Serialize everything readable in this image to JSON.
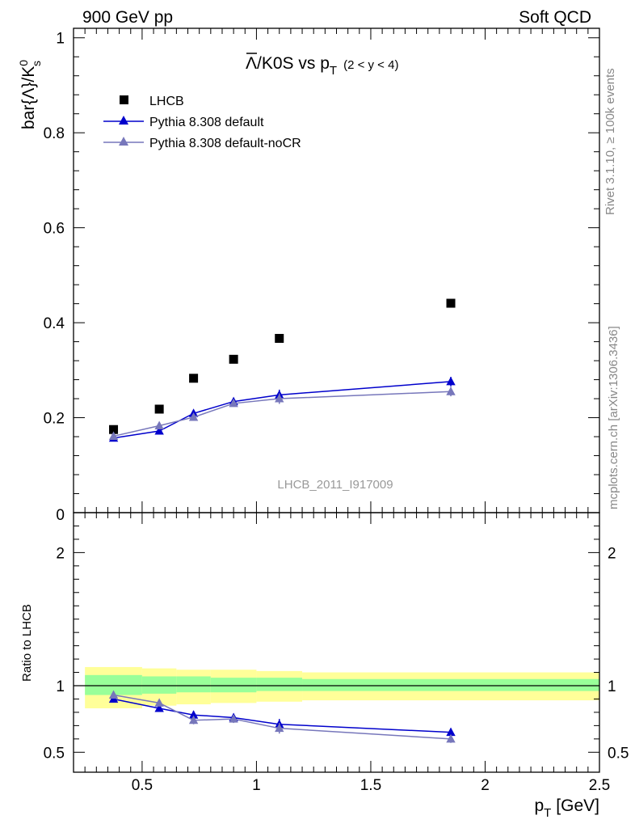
{
  "header": {
    "left": "900 GeV pp",
    "right": "Soft QCD"
  },
  "side_labels": {
    "rivet": "Rivet 3.1.10, ≥ 100k events",
    "mcplots": "mcplots.cern.ch [arXiv:1306.3436]"
  },
  "chart_data": [
    {
      "type": "scatter",
      "panel": "main",
      "title_main": "Λ/K0S vs p",
      "title_sub": "T",
      "title_range": "(2 < y < 4)",
      "ylabel": "bar{Λ}/K",
      "ylabel_sup": "0",
      "ylabel_sub": "s",
      "xlim": [
        0.2,
        2.5
      ],
      "ylim": [
        0,
        1.02
      ],
      "yticks": [
        0.2,
        0.4,
        0.6,
        0.8,
        1
      ],
      "ytick_labels": [
        "0.2",
        "0.4",
        "0.6",
        "0.8",
        "1"
      ],
      "bottom_tick_label": "0",
      "watermark": "LHCB_2011_I917009",
      "legend": {
        "placement": "top-left",
        "entries": [
          "LHCB",
          "Pythia 8.308 default",
          "Pythia 8.308 default-noCR"
        ]
      },
      "series": [
        {
          "name": "LHCB",
          "marker": "square",
          "color": "#000000",
          "x": [
            0.375,
            0.575,
            0.725,
            0.9,
            1.1,
            1.85
          ],
          "y": [
            0.175,
            0.218,
            0.283,
            0.323,
            0.367,
            0.441
          ]
        },
        {
          "name": "Pythia 8.308 default",
          "marker": "triangle",
          "color": "#0000cc",
          "x": [
            0.375,
            0.575,
            0.725,
            0.9,
            1.1,
            1.85
          ],
          "y": [
            0.157,
            0.172,
            0.209,
            0.234,
            0.248,
            0.276
          ],
          "err": [
            0.004,
            0.004,
            0.005,
            0.006,
            0.011,
            0.01
          ]
        },
        {
          "name": "Pythia 8.308 default-noCR",
          "marker": "triangle",
          "color": "#7777bb",
          "x": [
            0.375,
            0.575,
            0.725,
            0.9,
            1.1,
            1.85
          ],
          "y": [
            0.161,
            0.183,
            0.201,
            0.23,
            0.24,
            0.255
          ],
          "err": [
            0.004,
            0.004,
            0.005,
            0.006,
            0.011,
            0.01
          ]
        }
      ]
    },
    {
      "type": "scatter",
      "panel": "ratio",
      "ylabel": "Ratio to LHCB",
      "xlabel": "p",
      "xlabel_sub": "T",
      "xlabel_unit": "[GeV]",
      "xlim": [
        0.2,
        2.5
      ],
      "ylim": [
        0.35,
        2.3
      ],
      "xticks": [
        0.5,
        1,
        1.5,
        2,
        2.5
      ],
      "xtick_labels": [
        "0.5",
        "1",
        "1.5",
        "2",
        "2.5"
      ],
      "yticks": [
        0.5,
        1,
        2
      ],
      "ytick_labels": [
        "0.5",
        "1",
        "2"
      ],
      "bands": {
        "bins": [
          [
            0.25,
            0.5
          ],
          [
            0.5,
            0.65
          ],
          [
            0.65,
            0.8
          ],
          [
            0.8,
            1.0
          ],
          [
            1.0,
            1.2
          ],
          [
            1.2,
            2.5
          ]
        ],
        "inner": [
          [
            0.93,
            1.08
          ],
          [
            0.94,
            1.07
          ],
          [
            0.95,
            1.07
          ],
          [
            0.95,
            1.06
          ],
          [
            0.96,
            1.06
          ],
          [
            0.96,
            1.05
          ]
        ],
        "outer": [
          [
            0.83,
            1.14
          ],
          [
            0.85,
            1.13
          ],
          [
            0.86,
            1.12
          ],
          [
            0.87,
            1.12
          ],
          [
            0.88,
            1.11
          ],
          [
            0.89,
            1.1
          ]
        ],
        "inner_color": "#99ff99",
        "outer_color": "#ffff99"
      },
      "series": [
        {
          "name": "Pythia 8.308 default",
          "marker": "triangle",
          "color": "#0000cc",
          "x": [
            0.375,
            0.575,
            0.725,
            0.9,
            1.1,
            1.85
          ],
          "y": [
            0.9,
            0.83,
            0.78,
            0.76,
            0.71,
            0.65
          ],
          "err": [
            0.02,
            0.02,
            0.03,
            0.03,
            0.04,
            0.03
          ]
        },
        {
          "name": "Pythia 8.308 default-noCR",
          "marker": "triangle",
          "color": "#7777bb",
          "x": [
            0.375,
            0.575,
            0.725,
            0.9,
            1.1,
            1.85
          ],
          "y": [
            0.93,
            0.87,
            0.74,
            0.75,
            0.68,
            0.6
          ],
          "err": [
            0.02,
            0.02,
            0.03,
            0.03,
            0.04,
            0.03
          ]
        }
      ]
    }
  ]
}
